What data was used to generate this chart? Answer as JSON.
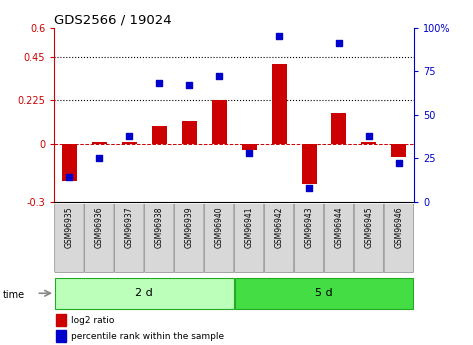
{
  "title": "GDS2566 / 19024",
  "samples": [
    "GSM96935",
    "GSM96936",
    "GSM96937",
    "GSM96938",
    "GSM96939",
    "GSM96940",
    "GSM96941",
    "GSM96942",
    "GSM96943",
    "GSM96944",
    "GSM96945",
    "GSM96946"
  ],
  "log2_ratio": [
    -0.19,
    0.01,
    0.01,
    0.09,
    0.12,
    0.225,
    -0.03,
    0.41,
    -0.21,
    0.16,
    0.01,
    -0.07
  ],
  "percentile_rank": [
    14,
    25,
    38,
    68,
    67,
    72,
    28,
    95,
    8,
    91,
    38,
    22
  ],
  "group1_label": "2 d",
  "group2_label": "5 d",
  "group1_count": 6,
  "group2_count": 6,
  "bar_color": "#cc0000",
  "dot_color": "#0000cc",
  "ylim_left": [
    -0.3,
    0.6
  ],
  "ylim_right": [
    0,
    100
  ],
  "yticks_left": [
    -0.3,
    0.0,
    0.225,
    0.45,
    0.6
  ],
  "yticks_right": [
    0,
    25,
    50,
    75,
    100
  ],
  "ytick_labels_left": [
    "-0.3",
    "0",
    "0.225",
    "0.45",
    "0.6"
  ],
  "ytick_labels_right": [
    "0",
    "25",
    "50",
    "75",
    "100%"
  ],
  "dotted_lines": [
    0.45,
    0.225
  ],
  "group1_color": "#bbffbb",
  "group2_color": "#44dd44",
  "bar_width": 0.5,
  "legend_red": "log2 ratio",
  "legend_blue": "percentile rank within the sample",
  "time_label": "time"
}
